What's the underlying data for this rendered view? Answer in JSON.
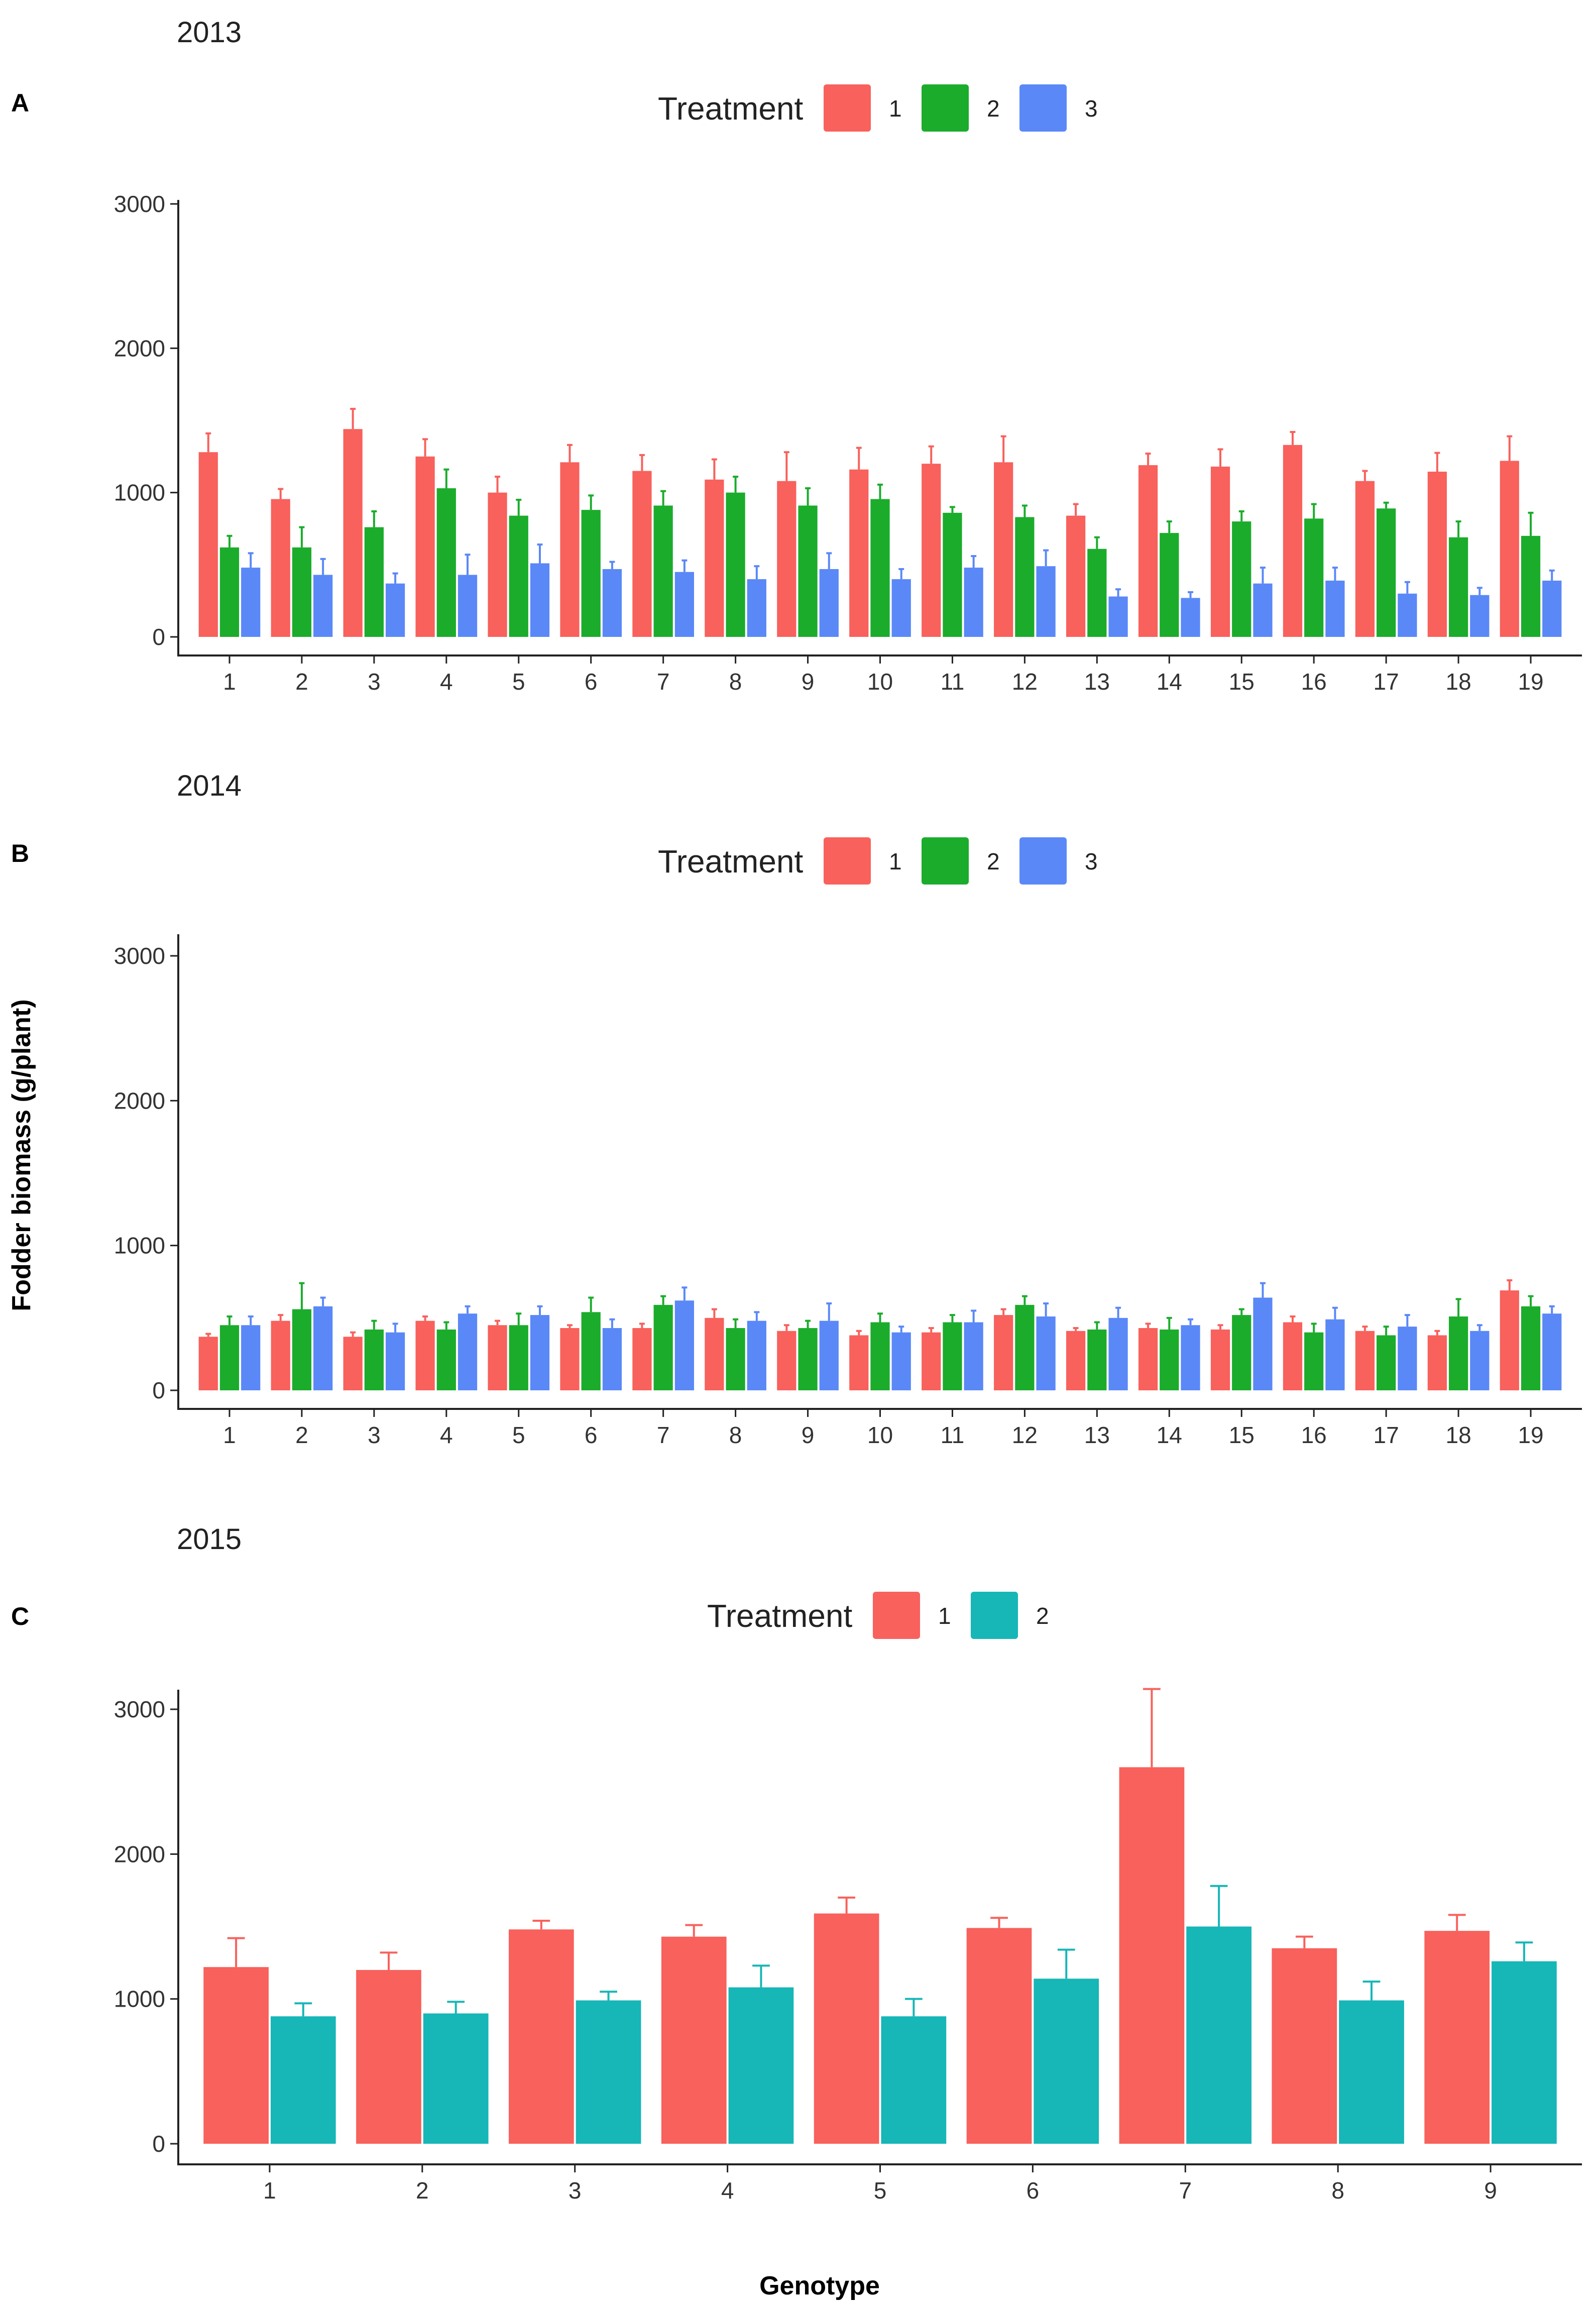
{
  "axis": {
    "ylabel": "Fodder biomass (g/plant)",
    "xlabel": "Genotype"
  },
  "chart_data": [
    {
      "type": "bar",
      "panel": "A",
      "title": "2013",
      "legend_title": "Treatment",
      "legend_position": "top",
      "ylim": [
        0,
        3000
      ],
      "yticks": [
        0,
        1000,
        2000,
        3000
      ],
      "categories": [
        "1",
        "2",
        "3",
        "4",
        "5",
        "6",
        "7",
        "8",
        "9",
        "10",
        "11",
        "12",
        "13",
        "14",
        "15",
        "16",
        "17",
        "18",
        "19"
      ],
      "series": [
        {
          "name": "1",
          "color": "#f8615c",
          "values": [
            1280,
            955,
            1440,
            1250,
            1000,
            1210,
            1150,
            1090,
            1080,
            1160,
            1200,
            1210,
            840,
            1190,
            1180,
            1330,
            1080,
            1145,
            1220
          ],
          "errors": [
            130,
            70,
            140,
            120,
            110,
            120,
            110,
            140,
            200,
            150,
            120,
            180,
            80,
            80,
            120,
            90,
            70,
            130,
            170
          ]
        },
        {
          "name": "2",
          "color": "#1bac2c",
          "values": [
            620,
            620,
            760,
            1030,
            840,
            880,
            910,
            1000,
            910,
            955,
            860,
            830,
            610,
            720,
            800,
            820,
            890,
            690,
            700
          ],
          "errors": [
            80,
            140,
            110,
            130,
            110,
            100,
            100,
            110,
            120,
            100,
            40,
            80,
            80,
            80,
            70,
            100,
            40,
            110,
            160
          ]
        },
        {
          "name": "3",
          "color": "#5a88f7",
          "values": [
            480,
            430,
            370,
            430,
            510,
            470,
            450,
            400,
            470,
            400,
            480,
            490,
            280,
            270,
            370,
            390,
            300,
            290,
            390
          ],
          "errors": [
            100,
            110,
            70,
            140,
            130,
            50,
            80,
            90,
            110,
            70,
            80,
            110,
            50,
            40,
            110,
            90,
            80,
            50,
            70
          ]
        }
      ]
    },
    {
      "type": "bar",
      "panel": "B",
      "title": "2014",
      "legend_title": "Treatment",
      "legend_position": "top",
      "ylim": [
        0,
        3000
      ],
      "yticks": [
        0,
        1000,
        2000,
        3000
      ],
      "categories": [
        "1",
        "2",
        "3",
        "4",
        "5",
        "6",
        "7",
        "8",
        "9",
        "10",
        "11",
        "12",
        "13",
        "14",
        "15",
        "16",
        "17",
        "18",
        "19"
      ],
      "series": [
        {
          "name": "1",
          "color": "#f8615c",
          "values": [
            370,
            480,
            370,
            480,
            450,
            430,
            430,
            500,
            410,
            380,
            400,
            520,
            410,
            430,
            420,
            470,
            410,
            380,
            690
          ],
          "errors": [
            20,
            40,
            30,
            30,
            30,
            20,
            30,
            60,
            40,
            30,
            30,
            40,
            20,
            30,
            30,
            40,
            30,
            30,
            70
          ]
        },
        {
          "name": "2",
          "color": "#1bac2c",
          "values": [
            450,
            560,
            420,
            420,
            450,
            540,
            590,
            430,
            430,
            470,
            470,
            590,
            420,
            420,
            520,
            400,
            380,
            510,
            580
          ],
          "errors": [
            60,
            180,
            60,
            50,
            80,
            100,
            60,
            60,
            50,
            60,
            50,
            60,
            50,
            80,
            40,
            60,
            60,
            120,
            70
          ]
        },
        {
          "name": "3",
          "color": "#5a88f7",
          "values": [
            450,
            580,
            400,
            530,
            520,
            430,
            620,
            480,
            480,
            400,
            470,
            510,
            500,
            450,
            640,
            490,
            440,
            410,
            530
          ],
          "errors": [
            60,
            60,
            60,
            50,
            60,
            60,
            90,
            60,
            120,
            40,
            80,
            90,
            70,
            40,
            100,
            80,
            80,
            40,
            50
          ]
        }
      ]
    },
    {
      "type": "bar",
      "panel": "C",
      "title": "2015",
      "legend_title": "Treatment",
      "legend_position": "top",
      "ylim": [
        0,
        3000
      ],
      "yticks": [
        0,
        1000,
        2000,
        3000
      ],
      "categories": [
        "1",
        "2",
        "3",
        "4",
        "5",
        "6",
        "7",
        "8",
        "9"
      ],
      "series": [
        {
          "name": "1",
          "color": "#f8615c",
          "values": [
            1220,
            1200,
            1480,
            1430,
            1590,
            1490,
            2600,
            1350,
            1470
          ],
          "errors": [
            200,
            120,
            60,
            80,
            110,
            70,
            540,
            80,
            110
          ]
        },
        {
          "name": "2",
          "color": "#17b6b7",
          "values": [
            880,
            900,
            990,
            1080,
            880,
            1140,
            1500,
            990,
            1260
          ],
          "errors": [
            90,
            80,
            60,
            150,
            120,
            200,
            280,
            130,
            130
          ]
        }
      ]
    }
  ]
}
